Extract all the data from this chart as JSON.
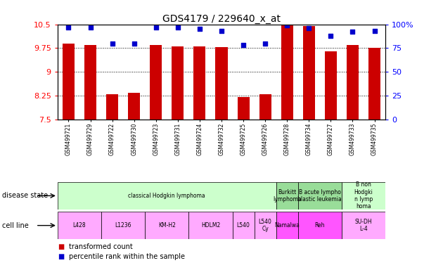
{
  "title": "GDS4179 / 229640_x_at",
  "samples": [
    "GSM499721",
    "GSM499729",
    "GSM499722",
    "GSM499730",
    "GSM499723",
    "GSM499731",
    "GSM499724",
    "GSM499732",
    "GSM499725",
    "GSM499726",
    "GSM499728",
    "GSM499734",
    "GSM499727",
    "GSM499733",
    "GSM499735"
  ],
  "transformed_count": [
    9.9,
    9.85,
    8.3,
    8.35,
    9.85,
    9.8,
    9.8,
    9.78,
    8.22,
    8.3,
    10.48,
    10.45,
    9.65,
    9.85,
    9.75
  ],
  "percentile": [
    97,
    97,
    80,
    80,
    97,
    97,
    95,
    93,
    78,
    80,
    99,
    96,
    88,
    92,
    93
  ],
  "ymin": 7.5,
  "ymax": 10.5,
  "yticks": [
    7.5,
    8.25,
    9.0,
    9.75,
    10.5
  ],
  "ytick_labels": [
    "7.5",
    "8.25",
    "9",
    "9.75",
    "10.5"
  ],
  "right_yticks": [
    0,
    25,
    50,
    75,
    100
  ],
  "right_ytick_labels": [
    "0",
    "25",
    "50",
    "75",
    "100%"
  ],
  "bar_color": "#cc0000",
  "dot_color": "#0000cc",
  "background_color": "#ffffff",
  "disease_box_data": [
    {
      "label": "classical Hodgkin lymphoma",
      "start": 0,
      "end": 10,
      "color": "#ccffcc"
    },
    {
      "label": "Burkitt\nlymphoma",
      "start": 10,
      "end": 11,
      "color": "#99dd99"
    },
    {
      "label": "B acute lympho\nblastic leukemia",
      "start": 11,
      "end": 13,
      "color": "#99dd99"
    },
    {
      "label": "B non\nHodgki\nn lymp\nhoma",
      "start": 13,
      "end": 15,
      "color": "#ccffcc"
    }
  ],
  "cell_lines": [
    {
      "label": "L428",
      "start": 0,
      "end": 2,
      "color": "#ffaaff"
    },
    {
      "label": "L1236",
      "start": 2,
      "end": 4,
      "color": "#ffaaff"
    },
    {
      "label": "KM-H2",
      "start": 4,
      "end": 6,
      "color": "#ffaaff"
    },
    {
      "label": "HDLM2",
      "start": 6,
      "end": 8,
      "color": "#ffaaff"
    },
    {
      "label": "L540",
      "start": 8,
      "end": 9,
      "color": "#ffaaff"
    },
    {
      "label": "L540\nCy",
      "start": 9,
      "end": 10,
      "color": "#ffaaff"
    },
    {
      "label": "Namalwa",
      "start": 10,
      "end": 11,
      "color": "#ff55ff"
    },
    {
      "label": "Reh",
      "start": 11,
      "end": 13,
      "color": "#ff55ff"
    },
    {
      "label": "SU-DH\nL-4",
      "start": 13,
      "end": 15,
      "color": "#ffaaff"
    }
  ]
}
